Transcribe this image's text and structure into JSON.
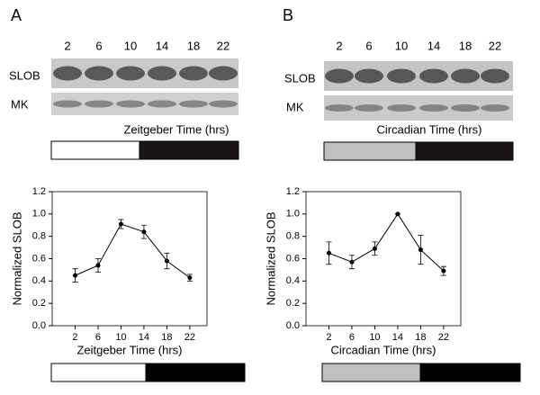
{
  "panels": [
    {
      "label": "A",
      "blot_times": [
        "2",
        "6",
        "10",
        "14",
        "18",
        "22"
      ],
      "blot_rows": [
        "SLOB",
        "MK"
      ],
      "blot_axis_label": "Zeitgeber Time (hrs)"
    },
    {
      "label": "B",
      "blot_times": [
        "2",
        "6",
        "10",
        "14",
        "18",
        "22"
      ],
      "blot_rows": [
        "SLOB",
        "MK"
      ],
      "blot_axis_label": "Circadian Time (hrs)"
    }
  ],
  "chart_data": [
    {
      "type": "line",
      "xlabel": "Zeitgeber Time (hrs)",
      "ylabel": "Normalized SLOB",
      "color": "#000000",
      "x": [
        2,
        6,
        10,
        14,
        18,
        22
      ],
      "values": [
        0.45,
        0.54,
        0.91,
        0.84,
        0.58,
        0.43
      ],
      "errors": [
        0.06,
        0.06,
        0.04,
        0.06,
        0.07,
        0.03
      ],
      "xlim": [
        -2,
        25
      ],
      "xticks": [
        2,
        6,
        10,
        14,
        18,
        22
      ],
      "ylim": [
        0,
        1.2
      ],
      "yticks": [
        {
          "value": 0,
          "label": "0.0"
        },
        0.2,
        0.4,
        0.6,
        0.8,
        {
          "value": 1,
          "label": "1.0"
        },
        1.2
      ]
    },
    {
      "type": "line",
      "xlabel": "Circadian Time (hrs)",
      "ylabel": "Normalized SLOB",
      "color": "#000000",
      "x": [
        2,
        6,
        10,
        14,
        18,
        22
      ],
      "values": [
        0.65,
        0.57,
        0.69,
        1.0,
        0.68,
        0.49
      ],
      "errors": [
        0.1,
        0.06,
        0.06,
        0,
        0.13,
        0.04
      ],
      "xlim": [
        -2,
        25
      ],
      "xticks": [
        2,
        6,
        10,
        14,
        18,
        22
      ],
      "ylim": [
        0,
        1.2
      ],
      "yticks": [
        {
          "value": 0,
          "label": "0.0"
        },
        0.2,
        0.4,
        0.6,
        0.8,
        {
          "value": 1,
          "label": "1.0"
        },
        1.2
      ]
    }
  ]
}
